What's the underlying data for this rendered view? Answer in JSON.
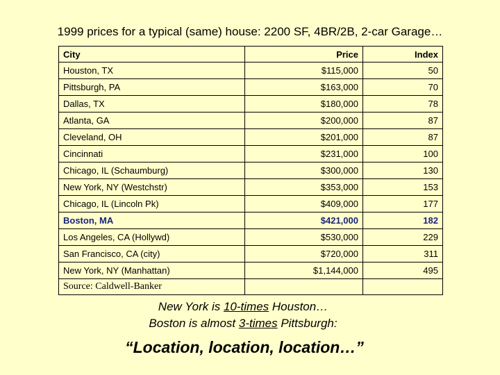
{
  "title": "1999 prices for a typical (same) house: 2200 SF, 4BR/2B, 2-car Garage…",
  "table": {
    "headers": [
      "City",
      "Price",
      "Index"
    ],
    "rows": [
      {
        "city": "Houston, TX",
        "price": "$115,000",
        "index": "50"
      },
      {
        "city": "Pittsburgh, PA",
        "price": "$163,000",
        "index": "70"
      },
      {
        "city": "Dallas, TX",
        "price": "$180,000",
        "index": "78"
      },
      {
        "city": "Atlanta, GA",
        "price": "$200,000",
        "index": "87"
      },
      {
        "city": "Cleveland, OH",
        "price": "$201,000",
        "index": "87"
      },
      {
        "city": "Cincinnati",
        "price": "$231,000",
        "index": "100"
      },
      {
        "city": "Chicago, IL (Schaumburg)",
        "price": "$300,000",
        "index": "130"
      },
      {
        "city": "New York, NY (Westchstr)",
        "price": "$353,000",
        "index": "153"
      },
      {
        "city": "Chicago, IL (Lincoln Pk)",
        "price": "$409,000",
        "index": "177"
      },
      {
        "city": "Boston, MA",
        "price": "$421,000",
        "index": "182"
      },
      {
        "city": "Los Angeles, CA (Hollywd)",
        "price": "$530,000",
        "index": "229"
      },
      {
        "city": "San Francisco, CA (city)",
        "price": "$720,000",
        "index": "311"
      },
      {
        "city": "New York, NY (Manhattan)",
        "price": "$1,144,000",
        "index": "495"
      }
    ],
    "highlight_row": 9,
    "highlight_color": "#1a237e",
    "source": "Source: Caldwell-Banker"
  },
  "notes": {
    "line1": {
      "pre": "New York is ",
      "emph": "10-times",
      "post": " Houston…"
    },
    "line2": {
      "pre": "Boston is almost ",
      "emph": "3-times",
      "post": " Pittsburgh:"
    },
    "tagline": "“Location, location, location…”"
  },
  "colors": {
    "background": "#ffffcc"
  }
}
